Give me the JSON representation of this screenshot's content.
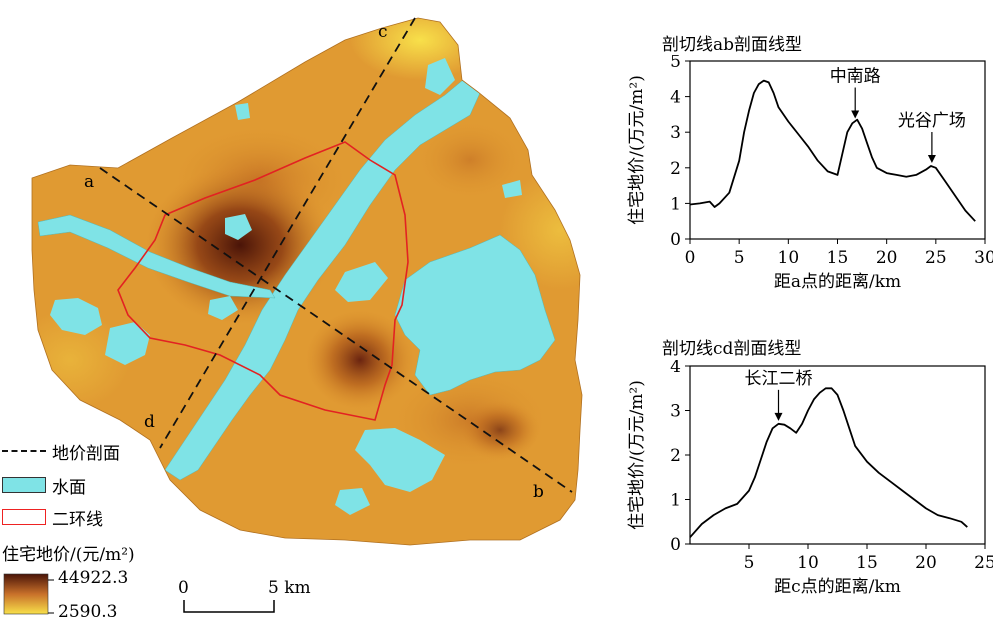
{
  "map": {
    "profile_labels": {
      "a": "a",
      "b": "b",
      "c": "c",
      "d": "d"
    },
    "scale_bar": {
      "zero": "0",
      "max": "5 km"
    },
    "legend": {
      "profile_line": "地价剖面",
      "water": "水面",
      "ring_road": "二环线",
      "price_title": "住宅地价/(元/m²)",
      "price_max": "44922.3",
      "price_min": "2590.3"
    },
    "colors": {
      "water": "#7fe3e6",
      "ring_road": "#e22222",
      "low_price": "#f8e04a",
      "high_price": "#4a1408"
    }
  },
  "chart_data": [
    {
      "type": "line",
      "title": "剖切线ab剖面线型",
      "xlabel": "距a点的距离/km",
      "ylabel": "住宅地价/(万元/m²)",
      "xlim": [
        0,
        30
      ],
      "ylim": [
        0,
        5
      ],
      "xticks": [
        "0",
        "5",
        "10",
        "15",
        "20",
        "25",
        "30"
      ],
      "yticks": [
        "0",
        "1",
        "2",
        "3",
        "4",
        "5"
      ],
      "annotations": [
        {
          "text": "中南路",
          "x": 16.8,
          "y": 3.3
        },
        {
          "text": "光谷广场",
          "x": 24.6,
          "y": 2.05
        }
      ],
      "x": [
        0,
        1,
        2,
        2.5,
        3,
        4,
        5,
        5.5,
        6,
        6.5,
        7,
        7.5,
        8,
        8.5,
        9,
        10,
        11,
        12,
        13,
        14,
        15,
        15.5,
        16,
        16.5,
        17,
        17.5,
        18,
        18.5,
        19,
        20,
        21,
        22,
        23,
        24,
        24.5,
        25,
        26,
        27,
        28,
        29
      ],
      "y": [
        0.97,
        1.0,
        1.05,
        0.9,
        1.0,
        1.3,
        2.2,
        3.0,
        3.6,
        4.1,
        4.35,
        4.45,
        4.4,
        4.1,
        3.7,
        3.3,
        2.95,
        2.6,
        2.2,
        1.9,
        1.8,
        2.4,
        3.0,
        3.25,
        3.35,
        3.1,
        2.7,
        2.3,
        2.0,
        1.85,
        1.8,
        1.75,
        1.8,
        1.95,
        2.05,
        2.0,
        1.6,
        1.2,
        0.8,
        0.5
      ]
    },
    {
      "type": "line",
      "title": "剖切线cd剖面线型",
      "xlabel": "距c点的距离/km",
      "ylabel": "住宅地价/(万元/m²)",
      "xlim": [
        0,
        25
      ],
      "ylim": [
        0,
        4
      ],
      "xticks": [
        "5",
        "10",
        "15",
        "20",
        "25"
      ],
      "yticks": [
        "0",
        "1",
        "2",
        "3",
        "4"
      ],
      "annotations": [
        {
          "text": "长江二桥",
          "x": 7.5,
          "y": 2.7
        }
      ],
      "x": [
        0,
        1,
        2,
        3,
        4,
        5,
        5.5,
        6,
        6.5,
        7,
        7.5,
        8,
        8.5,
        9,
        9.5,
        10,
        10.5,
        11,
        11.5,
        12,
        12.5,
        13,
        13.5,
        14,
        15,
        16,
        17,
        18,
        19,
        20,
        21,
        22,
        23,
        23.5
      ],
      "y": [
        0.15,
        0.45,
        0.65,
        0.8,
        0.9,
        1.2,
        1.5,
        1.9,
        2.3,
        2.6,
        2.7,
        2.68,
        2.6,
        2.5,
        2.7,
        3.0,
        3.25,
        3.4,
        3.5,
        3.5,
        3.35,
        3.0,
        2.6,
        2.2,
        1.85,
        1.6,
        1.4,
        1.2,
        1.0,
        0.8,
        0.65,
        0.58,
        0.5,
        0.38
      ]
    }
  ]
}
